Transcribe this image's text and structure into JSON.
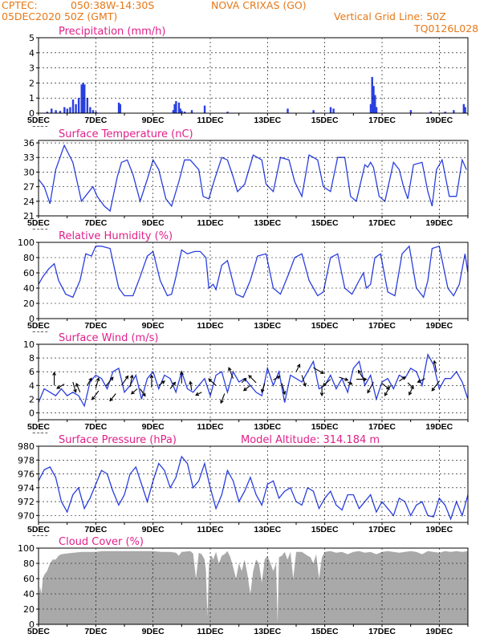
{
  "header": {
    "source": "CPTEC:",
    "coords": "050:38W-14:30S",
    "location": "NOVA CRIXAS (GO)",
    "date": "05DEC2020 50Z (GMT)",
    "grid_note": "Vertical Grid Line: 50Z",
    "model_code": "TQ0126L028",
    "altitude_label": "Model Altitude: 314.184 m"
  },
  "colors": {
    "header": "#e67817",
    "title": "#e0208a",
    "line": "#2a3fe0",
    "cloud": "#a9a9a9",
    "axis": "#000000"
  },
  "x_axis": {
    "day_start": 5,
    "day_end": 20,
    "tick_labels": [
      "5DEC",
      "7DEC",
      "9DEC",
      "11DEC",
      "13DEC",
      "15DEC",
      "17DEC",
      "19DEC"
    ],
    "tick_days": [
      5,
      7,
      9,
      11,
      13,
      15,
      17,
      19
    ],
    "year_label": "2020"
  },
  "chart_data": [
    {
      "id": "precip",
      "type": "bar",
      "title": "Precipitation (mm/h)",
      "ylim": [
        0,
        5
      ],
      "yticks": [
        0,
        1,
        2,
        3,
        4,
        5
      ],
      "points": [
        [
          5.3,
          0.1
        ],
        [
          5.45,
          0.3
        ],
        [
          5.6,
          0.2
        ],
        [
          5.75,
          0.15
        ],
        [
          5.9,
          0.4
        ],
        [
          6.0,
          0.3
        ],
        [
          6.1,
          0.4
        ],
        [
          6.2,
          0.9
        ],
        [
          6.3,
          0.6
        ],
        [
          6.4,
          1.0
        ],
        [
          6.5,
          1.9
        ],
        [
          6.55,
          2.0
        ],
        [
          6.6,
          1.9
        ],
        [
          6.7,
          1.0
        ],
        [
          6.8,
          0.4
        ],
        [
          6.9,
          0.2
        ],
        [
          7.0,
          0.1
        ],
        [
          7.8,
          0.7
        ],
        [
          7.85,
          0.6
        ],
        [
          9.7,
          0.2
        ],
        [
          9.75,
          0.6
        ],
        [
          9.8,
          0.8
        ],
        [
          9.9,
          0.7
        ],
        [
          9.95,
          0.3
        ],
        [
          10.0,
          0.15
        ],
        [
          10.1,
          0.1
        ],
        [
          10.35,
          0.2
        ],
        [
          10.8,
          0.5
        ],
        [
          11.6,
          0.1
        ],
        [
          13.7,
          0.3
        ],
        [
          14.6,
          0.2
        ],
        [
          15.2,
          0.4
        ],
        [
          15.3,
          0.3
        ],
        [
          16.6,
          0.6
        ],
        [
          16.65,
          2.4
        ],
        [
          16.7,
          1.8
        ],
        [
          16.75,
          1.2
        ],
        [
          16.8,
          0.4
        ],
        [
          18.0,
          0.2
        ],
        [
          18.7,
          0.1
        ],
        [
          19.2,
          0.1
        ],
        [
          19.5,
          0.2
        ],
        [
          19.85,
          0.6
        ],
        [
          19.9,
          0.4
        ]
      ]
    },
    {
      "id": "temp",
      "type": "line",
      "title": "Surface Temperature (nC)",
      "ylim": [
        21,
        36.5
      ],
      "yticks": [
        21,
        24,
        27,
        30,
        33,
        36
      ],
      "x": [
        5.0,
        5.2,
        5.4,
        5.6,
        5.9,
        6.2,
        6.5,
        6.7,
        6.9,
        7.05,
        7.3,
        7.5,
        7.75,
        7.9,
        8.1,
        8.3,
        8.55,
        8.8,
        9.0,
        9.2,
        9.45,
        9.65,
        9.9,
        10.1,
        10.3,
        10.6,
        10.75,
        10.95,
        11.15,
        11.4,
        11.6,
        11.8,
        11.95,
        12.2,
        12.5,
        12.8,
        12.95,
        13.2,
        13.45,
        13.75,
        13.95,
        14.2,
        14.45,
        14.75,
        14.95,
        15.2,
        15.45,
        15.7,
        15.9,
        16.1,
        16.4,
        16.5,
        16.6,
        16.7,
        16.9,
        17.1,
        17.4,
        17.6,
        17.75,
        17.9,
        18.1,
        18.4,
        18.6,
        18.75,
        18.9,
        19.1,
        19.35,
        19.6,
        19.8,
        19.95
      ],
      "y": [
        28.5,
        27.0,
        23.5,
        30.5,
        35.5,
        32.0,
        24.0,
        25.5,
        27.0,
        25.0,
        23.0,
        22.0,
        29.0,
        32.0,
        32.5,
        29.5,
        24.0,
        28.5,
        32.5,
        30.5,
        24.5,
        23.0,
        28.0,
        32.5,
        32.5,
        30.5,
        25.0,
        24.5,
        28.5,
        33.0,
        32.5,
        29.0,
        26.0,
        27.5,
        33.5,
        32.5,
        27.5,
        26.0,
        33.0,
        32.5,
        28.0,
        25.0,
        33.5,
        32.5,
        27.0,
        26.0,
        33.0,
        33.0,
        25.0,
        24.0,
        31.5,
        31.0,
        32.0,
        31.0,
        25.0,
        24.0,
        32.0,
        30.5,
        27.0,
        24.5,
        31.5,
        32.0,
        26.0,
        23.0,
        30.5,
        32.5,
        25.0,
        25.0,
        32.5,
        30.5
      ]
    },
    {
      "id": "rh",
      "type": "line",
      "title": "Relative Humidity (%)",
      "ylim": [
        0,
        100
      ],
      "yticks": [
        0,
        20,
        40,
        60,
        80,
        100
      ],
      "x": [
        5.0,
        5.15,
        5.35,
        5.55,
        5.7,
        5.95,
        6.2,
        6.45,
        6.65,
        6.85,
        7.0,
        7.2,
        7.5,
        7.8,
        8.0,
        8.3,
        8.55,
        8.8,
        9.0,
        9.25,
        9.5,
        9.65,
        9.8,
        10.0,
        10.2,
        10.45,
        10.65,
        10.85,
        10.95,
        11.1,
        11.2,
        11.4,
        11.6,
        11.9,
        12.15,
        12.4,
        12.65,
        12.95,
        13.2,
        13.45,
        13.7,
        13.95,
        14.2,
        14.45,
        14.75,
        14.95,
        15.2,
        15.45,
        15.7,
        15.95,
        16.2,
        16.35,
        16.45,
        16.6,
        16.75,
        16.95,
        17.2,
        17.45,
        17.7,
        17.95,
        18.2,
        18.45,
        18.6,
        18.75,
        19.0,
        19.3,
        19.5,
        19.7,
        19.9,
        20.0
      ],
      "y": [
        45,
        55,
        65,
        72,
        50,
        32,
        28,
        50,
        85,
        82,
        95,
        95,
        92,
        40,
        30,
        30,
        55,
        82,
        88,
        50,
        30,
        32,
        55,
        90,
        85,
        88,
        88,
        80,
        40,
        45,
        38,
        70,
        76,
        32,
        28,
        50,
        82,
        85,
        40,
        32,
        55,
        80,
        85,
        50,
        30,
        35,
        80,
        85,
        40,
        32,
        50,
        60,
        40,
        45,
        80,
        85,
        35,
        30,
        85,
        95,
        40,
        28,
        50,
        92,
        95,
        40,
        30,
        45,
        85,
        60
      ]
    },
    {
      "id": "wind",
      "type": "line",
      "title": "Surface Wind (m/s)",
      "ylim": [
        -1,
        10
      ],
      "yticks": [
        0,
        2,
        4,
        6,
        8,
        10
      ],
      "x": [
        5.0,
        5.2,
        5.4,
        5.6,
        5.8,
        6.0,
        6.2,
        6.4,
        6.6,
        6.8,
        7.0,
        7.2,
        7.4,
        7.6,
        7.8,
        8.0,
        8.2,
        8.4,
        8.6,
        8.8,
        9.0,
        9.2,
        9.4,
        9.6,
        9.8,
        10.0,
        10.2,
        10.4,
        10.6,
        10.8,
        11.0,
        11.2,
        11.4,
        11.6,
        11.8,
        12.0,
        12.2,
        12.4,
        12.6,
        12.8,
        13.0,
        13.2,
        13.4,
        13.6,
        13.8,
        14.0,
        14.2,
        14.4,
        14.6,
        14.8,
        15.0,
        15.2,
        15.4,
        15.6,
        15.8,
        16.0,
        16.2,
        16.4,
        16.6,
        16.8,
        17.0,
        17.2,
        17.4,
        17.6,
        17.8,
        18.0,
        18.2,
        18.4,
        18.6,
        18.8,
        19.0,
        19.2,
        19.4,
        19.6,
        19.8,
        20.0
      ],
      "y": [
        1.5,
        3.5,
        3.0,
        2.5,
        3.5,
        2.5,
        3.0,
        2.5,
        1.0,
        4.5,
        5.5,
        5.0,
        3.5,
        6.0,
        6.5,
        3.0,
        4.0,
        5.5,
        2.0,
        5.0,
        6.0,
        3.5,
        5.5,
        5.0,
        3.0,
        6.0,
        3.5,
        3.0,
        4.0,
        5.0,
        2.5,
        5.5,
        6.0,
        3.0,
        6.0,
        4.5,
        5.0,
        4.0,
        3.0,
        2.5,
        6.5,
        4.0,
        6.0,
        1.5,
        5.5,
        5.0,
        4.5,
        6.0,
        7.5,
        3.5,
        4.0,
        5.5,
        3.5,
        5.0,
        3.0,
        6.5,
        7.5,
        4.0,
        5.5,
        2.0,
        4.5,
        5.0,
        3.5,
        5.5,
        5.0,
        6.5,
        6.0,
        4.0,
        8.5,
        7.0,
        3.5,
        5.0,
        5.0,
        6.0,
        4.5,
        2.0
      ],
      "arrows": [
        [
          5.55,
          4.0,
          0.0,
          1.8
        ],
        [
          5.9,
          4.2,
          -1.0,
          -0.6
        ],
        [
          6.2,
          4.5,
          0.4,
          -1.4
        ],
        [
          6.45,
          3.0,
          -0.5,
          1.2
        ],
        [
          6.7,
          4.0,
          0.6,
          1.0
        ],
        [
          7.0,
          3.6,
          0.4,
          1.4
        ],
        [
          7.1,
          3.2,
          -0.9,
          -1.2
        ],
        [
          7.35,
          3.9,
          1.0,
          1.2
        ],
        [
          7.7,
          2.8,
          -0.8,
          -1.0
        ],
        [
          7.9,
          4.0,
          0.9,
          1.3
        ],
        [
          8.2,
          3.8,
          0.3,
          1.6
        ],
        [
          8.45,
          3.5,
          -0.8,
          -0.7
        ],
        [
          8.55,
          3.5,
          0.7,
          -1.0
        ],
        [
          8.95,
          3.7,
          0.0,
          1.7
        ],
        [
          9.2,
          4.0,
          0.8,
          0.6
        ],
        [
          9.6,
          3.5,
          0.7,
          0.9
        ],
        [
          10.0,
          4.3,
          0.0,
          1.6
        ],
        [
          10.35,
          3.3,
          -0.2,
          1.2
        ],
        [
          10.7,
          3.0,
          -0.8,
          -0.4
        ],
        [
          11.2,
          4.0,
          -1.0,
          0.9
        ],
        [
          11.5,
          2.8,
          -0.5,
          -1.3
        ],
        [
          11.8,
          5.0,
          -0.6,
          1.5
        ],
        [
          12.1,
          4.4,
          0.6,
          0.6
        ],
        [
          12.4,
          4.0,
          -0.9,
          -0.7
        ],
        [
          12.6,
          4.4,
          -1.0,
          1.0
        ],
        [
          12.9,
          4.3,
          -0.4,
          -1.2
        ],
        [
          13.2,
          4.8,
          0.9,
          0.5
        ],
        [
          13.5,
          4.3,
          0.4,
          -1.5
        ],
        [
          14.0,
          6.0,
          0.5,
          1.0
        ],
        [
          14.2,
          5.5,
          0.5,
          -1.5
        ],
        [
          14.6,
          6.6,
          1.4,
          -0.8
        ],
        [
          14.9,
          4.0,
          0.0,
          -1.4
        ],
        [
          15.2,
          4.9,
          -1.0,
          -0.9
        ],
        [
          15.5,
          5.2,
          1.2,
          -0.4
        ],
        [
          15.8,
          4.5,
          0.6,
          -0.3
        ],
        [
          16.1,
          4.9,
          1.4,
          0.0
        ],
        [
          16.4,
          4.6,
          -0.9,
          1.5
        ],
        [
          16.7,
          4.5,
          -0.8,
          -1.5
        ],
        [
          17.0,
          4.3,
          1.0,
          -0.8
        ],
        [
          17.3,
          4.0,
          -0.8,
          -1.4
        ],
        [
          17.6,
          4.6,
          0.8,
          0.6
        ],
        [
          17.9,
          4.4,
          0.8,
          -0.8
        ],
        [
          18.1,
          4.0,
          -0.6,
          -1.3
        ],
        [
          18.5,
          5.0,
          -1.0,
          -0.5
        ],
        [
          18.9,
          6.0,
          -0.3,
          1.5
        ],
        [
          19.0,
          4.6,
          -1.0,
          -1.3
        ]
      ]
    },
    {
      "id": "pres",
      "type": "line",
      "title": "Surface Pressure (hPa)",
      "ylim": [
        969,
        980
      ],
      "yticks": [
        970,
        972,
        974,
        976,
        978,
        980
      ],
      "x": [
        5.0,
        5.2,
        5.4,
        5.6,
        5.8,
        6.0,
        6.2,
        6.4,
        6.6,
        6.8,
        7.0,
        7.2,
        7.4,
        7.6,
        7.8,
        8.0,
        8.2,
        8.4,
        8.6,
        8.8,
        9.0,
        9.2,
        9.4,
        9.6,
        9.8,
        10.0,
        10.2,
        10.4,
        10.6,
        10.8,
        11.0,
        11.2,
        11.4,
        11.6,
        11.8,
        12.0,
        12.2,
        12.4,
        12.6,
        12.8,
        13.0,
        13.2,
        13.4,
        13.6,
        13.8,
        14.0,
        14.2,
        14.4,
        14.6,
        14.8,
        15.0,
        15.2,
        15.4,
        15.6,
        15.8,
        16.0,
        16.2,
        16.4,
        16.6,
        16.8,
        17.0,
        17.2,
        17.4,
        17.6,
        17.8,
        18.0,
        18.2,
        18.4,
        18.6,
        18.8,
        19.0,
        19.2,
        19.4,
        19.6,
        19.8,
        20.0
      ],
      "y": [
        975.0,
        976.6,
        977.0,
        975.5,
        972.0,
        970.5,
        973.0,
        974.0,
        971.0,
        972.5,
        974.5,
        976.5,
        976.0,
        973.5,
        971.5,
        973.0,
        976.0,
        977.0,
        974.5,
        972.0,
        975.0,
        977.5,
        976.5,
        974.0,
        975.5,
        978.5,
        977.5,
        974.0,
        975.0,
        977.5,
        974.0,
        971.0,
        973.0,
        976.5,
        975.0,
        972.0,
        973.5,
        975.5,
        973.0,
        971.5,
        974.5,
        975.0,
        972.5,
        973.5,
        974.0,
        972.0,
        971.5,
        974.0,
        973.5,
        971.0,
        972.5,
        973.5,
        971.5,
        970.8,
        973.0,
        973.0,
        971.0,
        972.0,
        973.0,
        970.5,
        972.0,
        971.0,
        970.0,
        972.5,
        972.0,
        970.0,
        971.5,
        972.0,
        970.0,
        969.8,
        972.5,
        971.5,
        969.5,
        972.0,
        970.0,
        973.0
      ]
    },
    {
      "id": "cloud",
      "type": "area",
      "title": "Cloud Cover (%)",
      "ylim": [
        0,
        100
      ],
      "yticks": [
        0,
        20,
        40,
        60,
        80,
        100
      ],
      "x": [
        5.0,
        5.05,
        5.1,
        5.15,
        5.2,
        5.3,
        5.4,
        5.5,
        5.6,
        5.7,
        5.8,
        6.0,
        6.5,
        7.0,
        7.2,
        7.5,
        8.0,
        8.5,
        9.0,
        9.3,
        9.6,
        9.8,
        9.9,
        10.0,
        10.3,
        10.4,
        10.5,
        10.6,
        10.7,
        10.8,
        10.85,
        10.9,
        10.95,
        11.0,
        11.05,
        11.1,
        11.2,
        11.3,
        11.4,
        11.5,
        11.6,
        11.7,
        11.8,
        11.9,
        12.0,
        12.1,
        12.2,
        12.3,
        12.4,
        12.5,
        12.6,
        12.7,
        12.8,
        12.9,
        13.0,
        13.1,
        13.2,
        13.3,
        13.35,
        13.4,
        13.5,
        13.6,
        13.7,
        13.8,
        13.9,
        14.0,
        14.2,
        14.4,
        14.5,
        14.6,
        14.7,
        14.8,
        14.9,
        15.0,
        15.2,
        15.4,
        15.6,
        15.8,
        16.0,
        16.2,
        16.4,
        16.6,
        16.8,
        17.0,
        17.2,
        17.4,
        17.6,
        17.8,
        18.0,
        18.2,
        18.4,
        18.6,
        18.8,
        19.0,
        19.2,
        19.4,
        19.6,
        19.8,
        20.0
      ],
      "y": [
        30,
        50,
        40,
        60,
        65,
        70,
        80,
        85,
        85,
        90,
        92,
        93,
        95,
        95,
        96,
        96,
        96,
        96,
        96,
        95,
        95,
        94,
        90,
        95,
        96,
        93,
        60,
        94,
        92,
        85,
        70,
        10,
        75,
        88,
        90,
        85,
        95,
        80,
        90,
        92,
        96,
        88,
        75,
        60,
        80,
        70,
        85,
        65,
        40,
        70,
        85,
        80,
        55,
        85,
        90,
        80,
        70,
        80,
        2,
        88,
        90,
        95,
        85,
        95,
        60,
        95,
        95,
        90,
        88,
        80,
        92,
        60,
        88,
        95,
        96,
        94,
        95,
        92,
        95,
        96,
        94,
        95,
        92,
        95,
        96,
        95,
        94,
        95,
        96,
        95,
        92,
        96,
        95,
        94,
        96,
        95,
        96,
        95,
        96
      ]
    }
  ]
}
